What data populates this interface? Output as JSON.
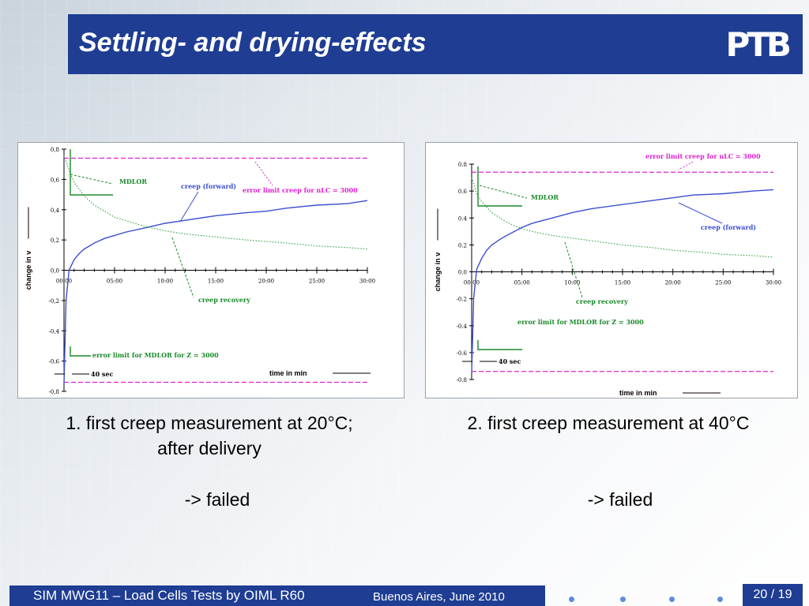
{
  "slide": {
    "title": "Settling- and drying-effects",
    "logo_text": "PTB",
    "footer_main": "SIM MWG11 – Load Cells Tests by OIML R60",
    "footer_sub": "Buenos Aires, June 2010",
    "page_number": "20 / 19",
    "colors": {
      "title_bar": "#1e3d93",
      "footer_bar": "#1e3d93",
      "dots": "#5b8dd9"
    }
  },
  "captions": {
    "caption1_line1": "1. first creep measurement at 20°C;",
    "caption1_line2": "after delivery",
    "caption2": "2. first creep measurement at 40°C",
    "result1": "-> failed",
    "result2": "-> failed"
  },
  "chart_data": [
    {
      "type": "line",
      "xlabel": "time in  min",
      "ylabel": "change in  v",
      "xlim": [
        0,
        30
      ],
      "ylim": [
        -0.8,
        0.8
      ],
      "x_ticks": [
        "00:00",
        "05:00",
        "10:00",
        "15:00",
        "20:00",
        "25:00",
        "30:00"
      ],
      "y_ticks": [
        "0,8",
        "0,6",
        "0,4",
        "0,2",
        "0,0",
        "-0,2",
        "-0,4",
        "-0,6",
        "-0,8"
      ],
      "series": [
        {
          "name": "creep (forward)",
          "color": "#3b4fd0",
          "style": "solid",
          "x": [
            0,
            0.2,
            0.5,
            1,
            1.5,
            2,
            3,
            4,
            5,
            6,
            8,
            10,
            12,
            15,
            18,
            20,
            22,
            25,
            28,
            30
          ],
          "y": [
            -0.75,
            -0.2,
            0.0,
            0.07,
            0.11,
            0.14,
            0.18,
            0.21,
            0.23,
            0.25,
            0.28,
            0.31,
            0.33,
            0.36,
            0.38,
            0.39,
            0.41,
            0.43,
            0.44,
            0.46
          ]
        },
        {
          "name": "creep recovery",
          "color": "#3aa84a",
          "style": "dotted",
          "x": [
            0,
            0.5,
            1,
            2,
            3,
            4,
            5,
            6,
            8,
            10,
            12,
            15,
            18,
            20,
            22,
            25,
            28,
            30
          ],
          "y": [
            0.76,
            0.66,
            0.58,
            0.49,
            0.43,
            0.39,
            0.35,
            0.33,
            0.29,
            0.26,
            0.24,
            0.22,
            0.2,
            0.19,
            0.18,
            0.16,
            0.15,
            0.14
          ]
        }
      ],
      "limit_lines": [
        {
          "label": "error limit creep for  nLC  =  3000",
          "color": "#e020d0",
          "y": 0.74
        },
        {
          "label": "",
          "color": "#e020d0",
          "y": -0.74
        }
      ],
      "annotations": {
        "mdlor": "MDLOR",
        "creep_forward": "creep (forward)",
        "creep_recovery": "creep recovery",
        "error_limit_nlc": "error limit creep for  nLC  =  3000",
        "error_limit_mdlor": "error limit for MDLOR for  Z  =  3000",
        "forty_sec": "40 sec"
      }
    },
    {
      "type": "line",
      "xlabel": "time in  min",
      "ylabel": "change in  v",
      "xlim": [
        0,
        30
      ],
      "ylim": [
        -0.8,
        0.8
      ],
      "x_ticks": [
        "00:00",
        "05:00",
        "10:00",
        "15:00",
        "20:00",
        "25:00",
        "30:00"
      ],
      "y_ticks": [
        "0.8",
        "0.6",
        "0.4",
        "0.2",
        "0.0",
        "-0.2",
        "-0.4",
        "-0.6",
        "-0.8"
      ],
      "series": [
        {
          "name": "creep (forward)",
          "color": "#3b4fd0",
          "style": "solid",
          "x": [
            0,
            0.2,
            0.5,
            1,
            1.5,
            2,
            3,
            4,
            5,
            6,
            8,
            10,
            12,
            15,
            18,
            20,
            22,
            25,
            28,
            30
          ],
          "y": [
            -0.75,
            -0.2,
            0.02,
            0.1,
            0.16,
            0.2,
            0.25,
            0.29,
            0.33,
            0.36,
            0.4,
            0.44,
            0.47,
            0.5,
            0.53,
            0.55,
            0.57,
            0.58,
            0.6,
            0.61
          ]
        },
        {
          "name": "creep recovery",
          "color": "#3aa84a",
          "style": "dotted",
          "x": [
            0,
            0.5,
            1,
            2,
            3,
            4,
            5,
            6,
            8,
            10,
            12,
            15,
            18,
            20,
            22,
            25,
            28,
            30
          ],
          "y": [
            0.7,
            0.58,
            0.52,
            0.44,
            0.39,
            0.35,
            0.32,
            0.3,
            0.27,
            0.25,
            0.23,
            0.2,
            0.18,
            0.16,
            0.15,
            0.13,
            0.12,
            0.11
          ]
        }
      ],
      "limit_lines": [
        {
          "label": "error limit creep for  nLC  =  3000",
          "color": "#e020d0",
          "y": 0.74
        },
        {
          "label": "",
          "color": "#e020d0",
          "y": -0.74
        }
      ],
      "annotations": {
        "mdlor": "MDLOR",
        "creep_forward": "creep (forward)",
        "creep_recovery": "creep recovery",
        "error_limit_nlc": "error limit creep for  nLC  =  3000",
        "error_limit_mdlor": "error limit for MDLOR for  Z  =  3000",
        "forty_sec": "40 sec"
      }
    }
  ]
}
